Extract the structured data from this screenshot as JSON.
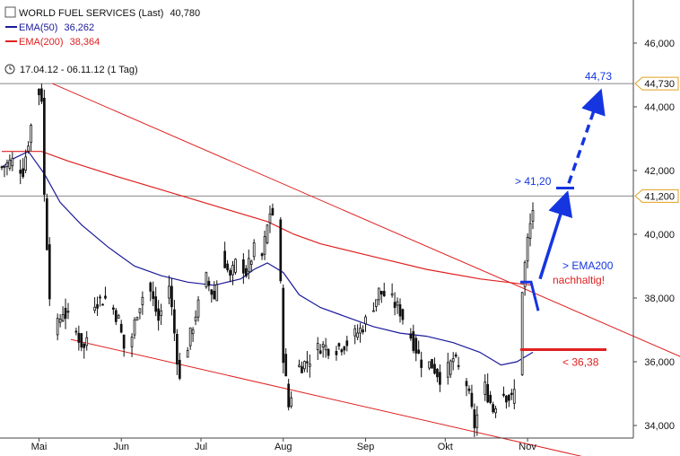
{
  "legend": {
    "main": {
      "label": "WORLD FUEL SERVICES (Last)",
      "value": "40,780",
      "color": "#111111"
    },
    "ema50": {
      "label": "EMA(50)",
      "value": "36,262",
      "color": "#1a1a9a"
    },
    "ema200": {
      "label": "EMA(200)",
      "value": "38,364",
      "color": "#e02020"
    },
    "period": "17.04.12 - 06.11.12 (1 Tag)"
  },
  "chart_data": {
    "type": "candlestick",
    "ylim": [
      33.4,
      47.0
    ],
    "price_axis_ticks": [
      34,
      36,
      38,
      40,
      42,
      44,
      46
    ],
    "price_tick_labels": [
      "34,000",
      "36,000",
      "38,000",
      "40,000",
      "42,000",
      "44,000",
      "46,000"
    ],
    "month_labels": [
      {
        "label": "Mai",
        "day": 14
      },
      {
        "label": "Jun",
        "day": 45
      },
      {
        "label": "Jul",
        "day": 75
      },
      {
        "label": "Aug",
        "day": 106
      },
      {
        "label": "Sep",
        "day": 137
      },
      {
        "label": "Okt",
        "day": 167
      },
      {
        "label": "Nov",
        "day": 198
      }
    ],
    "x_domain_days": [
      0,
      250
    ],
    "price_path": [
      [
        0,
        42.1
      ],
      [
        4,
        42.3
      ],
      [
        8,
        42.0
      ],
      [
        11,
        43.4
      ],
      [
        13,
        44.6
      ],
      [
        15,
        44.3
      ],
      [
        16,
        41.2
      ],
      [
        18,
        38.2
      ],
      [
        20,
        36.9
      ],
      [
        23,
        37.6
      ],
      [
        27,
        37.1
      ],
      [
        31,
        36.4
      ],
      [
        35,
        37.9
      ],
      [
        40,
        38.0
      ],
      [
        44,
        37.3
      ],
      [
        47,
        36.0
      ],
      [
        51,
        37.6
      ],
      [
        55,
        38.5
      ],
      [
        59,
        37.3
      ],
      [
        63,
        38.4
      ],
      [
        67,
        35.4
      ],
      [
        70,
        36.5
      ],
      [
        73,
        37.5
      ],
      [
        77,
        38.6
      ],
      [
        80,
        38.0
      ],
      [
        83,
        39.4
      ],
      [
        86,
        38.6
      ],
      [
        89,
        39.3
      ],
      [
        92,
        38.8
      ],
      [
        95,
        39.5
      ],
      [
        98,
        39.3
      ],
      [
        101,
        40.7
      ],
      [
        104,
        40.5
      ],
      [
        106,
        36.2
      ],
      [
        108,
        34.6
      ],
      [
        111,
        35.8
      ],
      [
        115,
        36.0
      ],
      [
        120,
        36.5
      ],
      [
        125,
        36.4
      ],
      [
        130,
        36.6
      ],
      [
        135,
        37.0
      ],
      [
        138,
        37.4
      ],
      [
        142,
        38.2
      ],
      [
        146,
        38.0
      ],
      [
        150,
        37.6
      ],
      [
        154,
        36.8
      ],
      [
        158,
        36.0
      ],
      [
        162,
        35.9
      ],
      [
        166,
        35.4
      ],
      [
        170,
        36.1
      ],
      [
        175,
        35.3
      ],
      [
        178,
        34.0
      ],
      [
        182,
        35.2
      ],
      [
        185,
        34.5
      ],
      [
        188,
        35.1
      ],
      [
        192,
        34.8
      ],
      [
        195,
        35.6
      ],
      [
        196,
        38.3
      ],
      [
        198,
        39.8
      ],
      [
        200,
        40.8
      ]
    ],
    "series": [
      {
        "name": "EMA(50)",
        "color": "#1a1a9a",
        "x": [
          0,
          5,
          10,
          16,
          22,
          30,
          40,
          50,
          60,
          70,
          80,
          90,
          95,
          100,
          106,
          112,
          120,
          130,
          140,
          150,
          160,
          170,
          180,
          188,
          194,
          200
        ],
        "y": [
          42.1,
          42.4,
          42.6,
          41.9,
          41.0,
          40.3,
          39.6,
          39.0,
          38.7,
          38.5,
          38.4,
          38.6,
          38.9,
          39.1,
          38.8,
          38.1,
          37.7,
          37.4,
          37.1,
          36.9,
          36.8,
          36.6,
          36.3,
          35.9,
          36.0,
          36.3
        ]
      },
      {
        "name": "EMA(200)",
        "color": "#e02020",
        "x": [
          0,
          15,
          25,
          40,
          60,
          80,
          100,
          110,
          120,
          140,
          160,
          180,
          190,
          200
        ],
        "y": [
          42.6,
          42.6,
          42.3,
          41.9,
          41.4,
          40.9,
          40.4,
          40.0,
          39.7,
          39.3,
          38.9,
          38.6,
          38.5,
          38.4
        ]
      }
    ],
    "trend_channel": {
      "upper": [
        [
          19,
          44.73
        ],
        [
          260,
          36.0
        ]
      ],
      "lower": [
        [
          26,
          36.7
        ],
        [
          220,
          33.0
        ]
      ],
      "color": "#e02020"
    },
    "horizontal_lines": [
      {
        "value": 44.73,
        "label": "44,730"
      },
      {
        "value": 41.2,
        "label": "41,200"
      }
    ],
    "annotations": {
      "target_label": "44,73",
      "resistance_label": "> 41,20",
      "ema_text_1": "> EMA200",
      "ema_text_2": "nachhaltig!",
      "support_label": "< 36,38",
      "support_value": 36.38
    }
  }
}
